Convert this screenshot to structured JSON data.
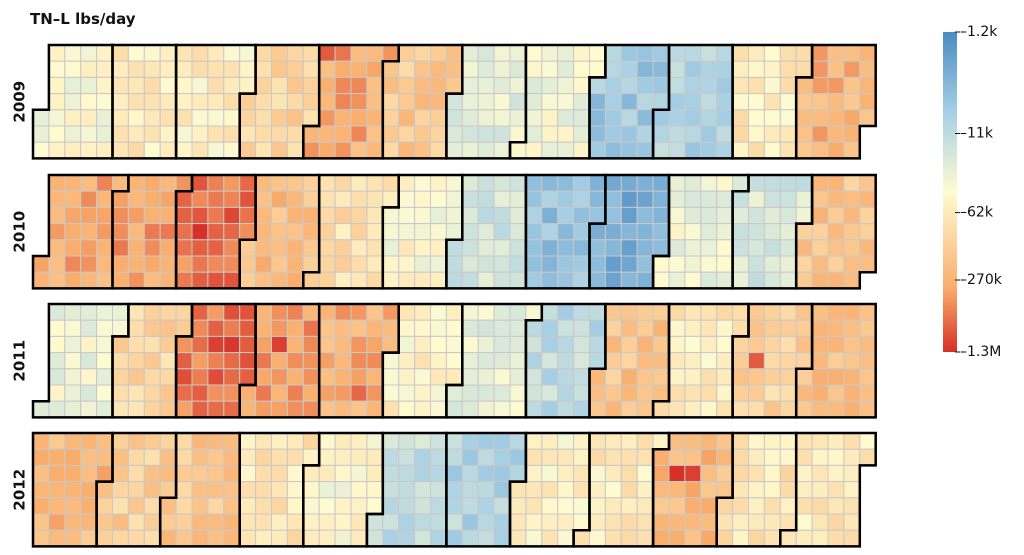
{
  "chart_data": {
    "type": "heatmap",
    "subtype": "calendar",
    "title": "TN–L lbs/day",
    "years": [
      "2009",
      "2010",
      "2011",
      "2012"
    ],
    "week_start": "Sunday",
    "color_scale": {
      "scale": "log",
      "direction": "reversed",
      "ticks": [
        {
          "label": "1.2k",
          "value": 1200
        },
        {
          "label": "11k",
          "value": 11000
        },
        {
          "label": "62k",
          "value": 62000
        },
        {
          "label": "270k",
          "value": 270000
        },
        {
          "label": "1.3M",
          "value": 1300000
        }
      ],
      "colors": [
        "#4a8bc2",
        "#a6cfe5",
        "#fffbd1",
        "#f9ad6c",
        "#d73027"
      ]
    },
    "monthly_typical_lbs_per_day": {
      "2009": [
        40000,
        62000,
        55000,
        120000,
        300000,
        150000,
        22000,
        30000,
        6000,
        9000,
        60000,
        250000
      ],
      "2010": [
        300000,
        350000,
        600000,
        200000,
        80000,
        40000,
        15000,
        5000,
        3000,
        30000,
        18000,
        170000
      ],
      "2011": [
        30000,
        110000,
        600000,
        400000,
        280000,
        50000,
        25000,
        11000,
        180000,
        60000,
        120000,
        190000
      ],
      "2012": [
        230000,
        130000,
        160000,
        70000,
        45000,
        12000,
        9000,
        50000,
        60000,
        220000,
        70000,
        65000
      ]
    },
    "peaks": [
      {
        "date": "2009-05-03",
        "value": 800000
      },
      {
        "date": "2009-05-10",
        "value": 600000
      },
      {
        "date": "2010-01-24",
        "value": 500000
      },
      {
        "date": "2010-02-02",
        "value": 450000
      },
      {
        "date": "2010-03-10",
        "value": 1300000
      },
      {
        "date": "2010-03-23",
        "value": 1000000
      },
      {
        "date": "2011-03-15",
        "value": 1100000
      },
      {
        "date": "2011-03-22",
        "value": 1200000
      },
      {
        "date": "2011-04-12",
        "value": 1100000
      },
      {
        "date": "2011-05-20",
        "value": 700000
      },
      {
        "date": "2011-11-09",
        "value": 800000
      },
      {
        "date": "2012-10-09",
        "value": 1300000
      },
      {
        "date": "2012-10-16",
        "value": 1100000
      }
    ]
  }
}
